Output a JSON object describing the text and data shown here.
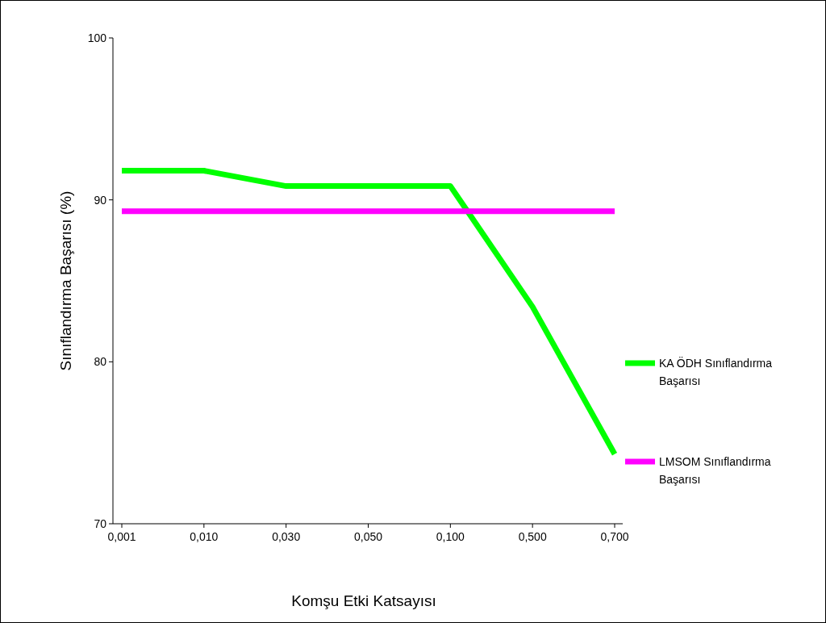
{
  "chart_data": {
    "type": "line",
    "xlabel": "Komşu Etki Katsayısı",
    "ylabel": "Sınıflandırma Başarısı (%)",
    "categories": [
      "0,001",
      "0,010",
      "0,030",
      "0,050",
      "0,100",
      "0,500",
      "0,700"
    ],
    "series": [
      {
        "name": "KA ÖDH Sınıflandırma Başarısı",
        "color": "#00ff00",
        "values": [
          91.8,
          91.8,
          90.85,
          90.85,
          90.85,
          83.4,
          74.3
        ]
      },
      {
        "name": "LMSOM Sınıflandırma Başarısı",
        "color": "#ff00ff",
        "values": [
          89.3,
          89.3,
          89.3,
          89.3,
          89.3,
          89.3,
          89.3
        ]
      }
    ],
    "ylim": [
      70,
      100
    ],
    "yticks": [
      70,
      80,
      90,
      100
    ],
    "grid": false,
    "legend": "right",
    "marker": "none",
    "line_style": "solid"
  }
}
